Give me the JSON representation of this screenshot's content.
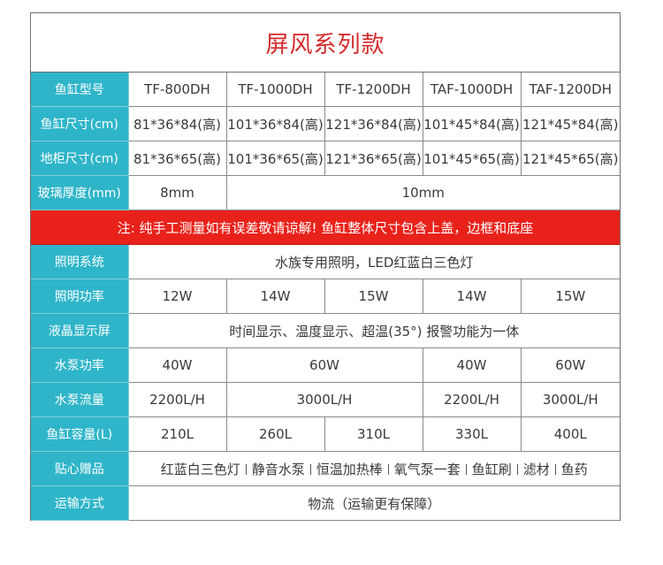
{
  "title": "屏风系列款",
  "columns": [
    "TF-800DH",
    "TF-1000DH",
    "TF-1200DH",
    "TAF-1000DH",
    "TAF-1200DH"
  ],
  "labels": {
    "model": "鱼缸型号",
    "tank_size": "鱼缸尺寸(cm)",
    "cabinet_size": "地柜尺寸(cm)",
    "glass": "玻璃厚度(mm)",
    "lighting": "照明系统",
    "light_power": "照明功率",
    "lcd": "液晶显示屏",
    "pump_power": "水泵功率",
    "pump_flow": "水泵流量",
    "capacity": "鱼缸容量(L)",
    "gifts": "贴心赠品",
    "shipping": "运输方式"
  },
  "tank_size": [
    "81*36*84(高)",
    "101*36*84(高)",
    "121*36*84(高)",
    "101*45*84(高)",
    "121*45*84(高)"
  ],
  "cabinet_size": [
    "81*36*65(高)",
    "101*36*65(高)",
    "121*36*65(高)",
    "101*45*65(高)",
    "121*45*65(高)"
  ],
  "glass": [
    "8mm",
    "10mm"
  ],
  "notice": "注: 纯手工测量如有误差敬请谅解! 鱼缸整体尺寸包含上盖，边框和底座",
  "lighting": "水族专用照明，LED红蓝白三色灯",
  "light_power": [
    "12W",
    "14W",
    "15W",
    "14W",
    "15W"
  ],
  "lcd": "时间显示、温度显示、超温(35°) 报警功能为一体",
  "pump_power": [
    "40W",
    "60W",
    "40W",
    "60W"
  ],
  "pump_flow": [
    "2200L/H",
    "3000L/H",
    "2200L/H",
    "3000L/H"
  ],
  "capacity": [
    "210L",
    "260L",
    "310L",
    "330L",
    "400L"
  ],
  "gifts": [
    "红蓝白三色灯",
    "静音水泵",
    "恒温加热棒",
    "氧气泵一套",
    "鱼缸刷",
    "滤材",
    "鱼药"
  ],
  "shipping": "物流（运输更有保障）"
}
